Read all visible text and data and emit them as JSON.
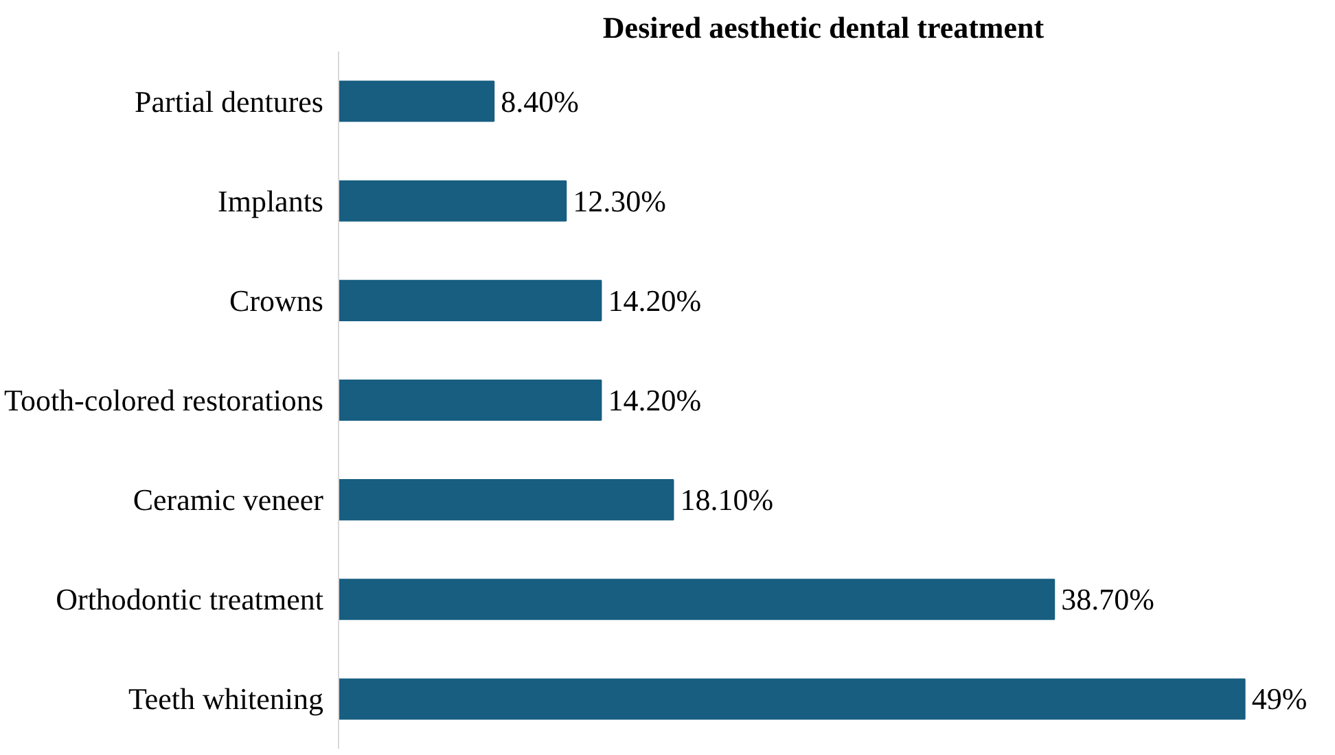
{
  "chart_data": {
    "type": "bar",
    "orientation": "horizontal",
    "title": "Desired aesthetic dental treatment",
    "categories": [
      "Partial dentures",
      "Implants",
      "Crowns",
      "Tooth-colored restorations",
      "Ceramic veneer",
      "Orthodontic treatment",
      "Teeth whitening"
    ],
    "values": [
      8.4,
      12.3,
      14.2,
      14.2,
      18.1,
      38.7,
      49
    ],
    "value_labels": [
      "8.40%",
      "12.30%",
      "14.20%",
      "14.20%",
      "18.10%",
      "38.70%",
      "49%"
    ],
    "color": "#175e81",
    "tick_labels": "y",
    "grid": false
  }
}
